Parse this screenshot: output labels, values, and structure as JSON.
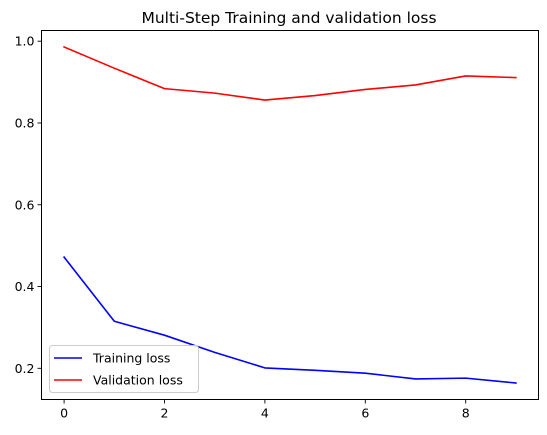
{
  "chart_data": {
    "type": "line",
    "title": "Multi-Step Training and validation loss",
    "xlabel": "",
    "ylabel": "",
    "x": [
      0,
      1,
      2,
      3,
      4,
      5,
      6,
      7,
      8,
      9
    ],
    "xlim": [
      -0.45,
      9.45
    ],
    "ylim": [
      0.1237,
      1.0262
    ],
    "xticks": [
      0,
      2,
      4,
      6,
      8
    ],
    "yticks": [
      0.2,
      0.4,
      0.6,
      0.8,
      1.0
    ],
    "xtick_labels": [
      "0",
      "2",
      "4",
      "6",
      "8"
    ],
    "ytick_labels": [
      "0.2",
      "0.4",
      "0.6",
      "0.8",
      "1.0"
    ],
    "grid": false,
    "legend_position": "lower-left",
    "series": [
      {
        "name": "Training loss",
        "color": "#0000ff",
        "values": [
          0.472,
          0.315,
          0.281,
          0.239,
          0.201,
          0.195,
          0.188,
          0.174,
          0.176,
          0.164
        ]
      },
      {
        "name": "Validation loss",
        "color": "#ff0000",
        "values": [
          0.986,
          0.934,
          0.884,
          0.873,
          0.856,
          0.867,
          0.882,
          0.893,
          0.915,
          0.911
        ]
      }
    ]
  }
}
